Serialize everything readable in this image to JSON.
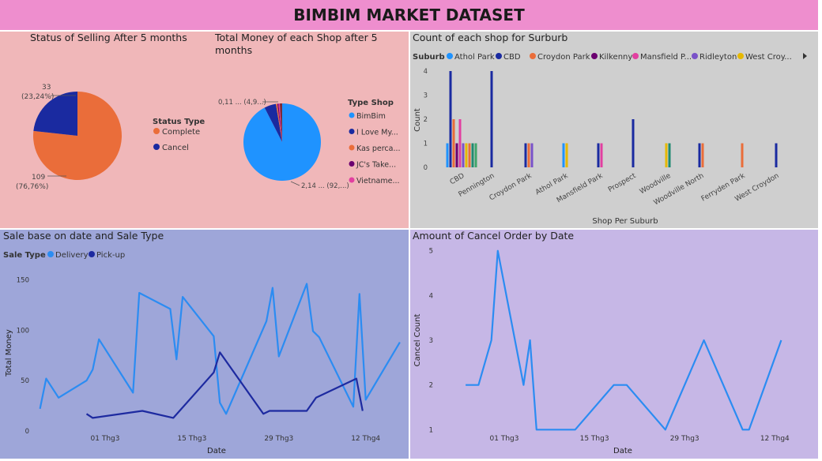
{
  "title": "BIMBIM MARKET DATASET",
  "colors": {
    "delivery": "#2b8cf2",
    "pickup": "#1d2aa0",
    "complete": "#ea6d3a",
    "cancel": "#1a2aa0"
  },
  "chart_data": [
    {
      "type": "pie",
      "title": "Status of Selling After 5 months",
      "legend_title": "Status Type",
      "slices": [
        {
          "label": "Complete",
          "value": 109,
          "data_label": "109",
          "pct_label": "(76,76%)",
          "color": "#ea6d3a"
        },
        {
          "label": "Cancel",
          "value": 33,
          "data_label": "33",
          "pct_label": "(23,24%)",
          "color": "#1a2aa0"
        }
      ]
    },
    {
      "type": "pie",
      "title_line1": "Total Money of each Shop after 5",
      "title_line2": "months",
      "legend_title": "Type Shop",
      "slices": [
        {
          "label": "BimBim",
          "value": 92.5,
          "color": "#1f93ff"
        },
        {
          "label": "I Love My...",
          "value": 4.9,
          "color": "#1a2aa0"
        },
        {
          "label": "Kas perca...",
          "value": 0.6,
          "color": "#ea6d3a"
        },
        {
          "label": "JC's Take...",
          "value": 0.5,
          "color": "#6b0070"
        },
        {
          "label": "Vietname...",
          "value": 0.5,
          "color": "#e23fa0"
        },
        {
          "label": "",
          "value": 1.0,
          "color": "#7a2a3a"
        }
      ],
      "data_labels": [
        "0,11 ... (4,9...)",
        "2,14 ... (92,...)"
      ]
    },
    {
      "type": "bar",
      "title": "Count of each shop for Surburb",
      "legend_title": "Suburb",
      "legend": [
        {
          "name": "Athol Park",
          "color": "#1f93ff"
        },
        {
          "name": "CBD",
          "color": "#1a2aa0"
        },
        {
          "name": "Croydon Park",
          "color": "#ea6d3a"
        },
        {
          "name": "Kilkenny",
          "color": "#6b0070"
        },
        {
          "name": "Mansfield P...",
          "color": "#e23fa0"
        },
        {
          "name": "Ridleyton",
          "color": "#7a52c8"
        },
        {
          "name": "West Croy...",
          "color": "#e6b800"
        }
      ],
      "extra_colors": [
        "#1f8a70",
        "#3fa66a"
      ],
      "categories": [
        "CBD",
        "Pennington",
        "Croydon Park",
        "Athol Park",
        "Mansfield Park",
        "Prospect",
        "Woodville",
        "Woodville North",
        "Ferryden Park",
        "West Croydon"
      ],
      "bars": [
        [
          [
            "#1f93ff",
            1
          ],
          [
            "#1a2aa0",
            4
          ],
          [
            "#ea6d3a",
            2
          ],
          [
            "#6b0070",
            1
          ],
          [
            "#e23fa0",
            2
          ],
          [
            "#7a52c8",
            1
          ],
          [
            "#e6b800",
            1
          ],
          [
            "#ea6d3a",
            1
          ],
          [
            "#1f8a70",
            1
          ],
          [
            "#3fa66a",
            1
          ]
        ],
        [
          [
            "#1a2aa0",
            4
          ]
        ],
        [
          [
            "#1a2aa0",
            1
          ],
          [
            "#ea6d3a",
            1
          ],
          [
            "#7a52c8",
            1
          ]
        ],
        [
          [
            "#1f93ff",
            1
          ],
          [
            "#e6b800",
            1
          ]
        ],
        [
          [
            "#1a2aa0",
            1
          ],
          [
            "#e23fa0",
            1
          ]
        ],
        [
          [
            "#1a2aa0",
            2
          ]
        ],
        [
          [
            "#e6b800",
            1
          ],
          [
            "#1f8a70",
            1
          ]
        ],
        [
          [
            "#1a2aa0",
            1
          ],
          [
            "#ea6d3a",
            1
          ]
        ],
        [
          [
            "#ea6d3a",
            1
          ]
        ],
        [
          [
            "#1a2aa0",
            1
          ]
        ]
      ],
      "xlabel": "Shop Per Suburb",
      "ylabel": "Count",
      "ylim": [
        0,
        4
      ],
      "yticks": [
        0,
        1,
        2,
        3,
        4
      ]
    },
    {
      "type": "line",
      "title": "Sale base on date and Sale Type",
      "legend_title": "Sale Type",
      "xlabel": "Date",
      "ylabel": "Total Money",
      "xticks": [
        {
          "label": "01 Thg3",
          "day": 1
        },
        {
          "label": "15 Thg3",
          "day": 15
        },
        {
          "label": "29 Thg3",
          "day": 29
        },
        {
          "label": "12 Thg4",
          "day": 43
        }
      ],
      "ylim": [
        0,
        155
      ],
      "yticks": [
        0,
        50,
        100,
        150
      ],
      "series": [
        {
          "name": "Delivery",
          "color": "#2b8cf2",
          "points": [
            [
              -9.5,
              22
            ],
            [
              -8.5,
              52
            ],
            [
              -6.5,
              33
            ],
            [
              -2,
              50
            ],
            [
              -1,
              61
            ],
            [
              0,
              91
            ],
            [
              5.5,
              38
            ],
            [
              6.5,
              137
            ],
            [
              11.5,
              121
            ],
            [
              12.5,
              71
            ],
            [
              13.5,
              133
            ],
            [
              18.5,
              94
            ],
            [
              19.5,
              28
            ],
            [
              20.5,
              17
            ],
            [
              27,
              109
            ],
            [
              28,
              142
            ],
            [
              29,
              74
            ],
            [
              33.5,
              146
            ],
            [
              34.5,
              99
            ],
            [
              35.5,
              93
            ],
            [
              41,
              24
            ],
            [
              42,
              136
            ],
            [
              43,
              31
            ],
            [
              48.5,
              88
            ]
          ]
        },
        {
          "name": "Pick-up",
          "color": "#1d2aa0",
          "points": [
            [
              -2,
              17
            ],
            [
              -1,
              13
            ],
            [
              7,
              20
            ],
            [
              12,
              13
            ],
            [
              18.5,
              58
            ],
            [
              19.5,
              78
            ],
            [
              26.5,
              17
            ],
            [
              27.5,
              20
            ],
            [
              33.5,
              20
            ],
            [
              35,
              33
            ],
            [
              41.5,
              52
            ],
            [
              42.5,
              20
            ]
          ]
        }
      ]
    },
    {
      "type": "line",
      "title": "Amount of Cancel Order by Date",
      "xlabel": "Date",
      "ylabel": "Cancel Count",
      "xticks": [
        {
          "label": "01 Thg3",
          "day": 1
        },
        {
          "label": "15 Thg3",
          "day": 15
        },
        {
          "label": "29 Thg3",
          "day": 29
        },
        {
          "label": "12 Thg4",
          "day": 43
        }
      ],
      "ylim": [
        0.9,
        5.1
      ],
      "yticks": [
        1,
        2,
        3,
        4,
        5
      ],
      "series": [
        {
          "name": "",
          "color": "#2b8cf2",
          "points": [
            [
              -5,
              2
            ],
            [
              -3,
              2
            ],
            [
              -1,
              3
            ],
            [
              0,
              5
            ],
            [
              4,
              2
            ],
            [
              5,
              3
            ],
            [
              6,
              1
            ],
            [
              12,
              1
            ],
            [
              18,
              2
            ],
            [
              20,
              2
            ],
            [
              26,
              1
            ],
            [
              32,
              3
            ],
            [
              38,
              1
            ],
            [
              39,
              1
            ],
            [
              44,
              3
            ]
          ]
        }
      ]
    }
  ]
}
